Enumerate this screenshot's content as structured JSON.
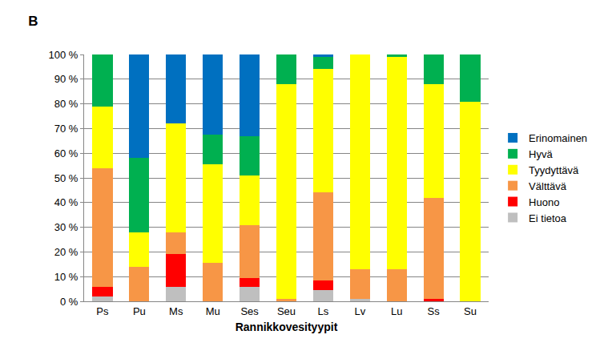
{
  "chart_data": {
    "type": "bar",
    "title": "B",
    "x_label": "Rannikkovesityypit",
    "categories": [
      "Ps",
      "Pu",
      "Ms",
      "Mu",
      "Ses",
      "Seu",
      "Ls",
      "Lv",
      "Lu",
      "Ss",
      "Su"
    ],
    "stacked": true,
    "grid": true,
    "legend": "right",
    "ylim": [
      0,
      100
    ],
    "yticks": [
      {
        "value": 0,
        "label": "0 %"
      },
      {
        "value": 10,
        "label": "10 %"
      },
      {
        "value": 20,
        "label": "20 %"
      },
      {
        "value": 30,
        "label": "30 %"
      },
      {
        "value": 40,
        "label": "40 %"
      },
      {
        "value": 50,
        "label": "50 %"
      },
      {
        "value": 60,
        "label": "60 %"
      },
      {
        "value": 70,
        "label": "70 %"
      },
      {
        "value": 80,
        "label": "80 %"
      },
      {
        "value": 90,
        "label": "90 %"
      },
      {
        "value": 100,
        "label": "100 %"
      }
    ],
    "series": [
      {
        "name": "Ei tietoa",
        "color": "#BFBFBF",
        "values": [
          2,
          0,
          6,
          0,
          6,
          0,
          4.5,
          1,
          0,
          0,
          0
        ]
      },
      {
        "name": "Huono",
        "color": "#FF0000",
        "values": [
          4,
          0,
          13,
          0,
          3.5,
          0,
          4,
          0,
          0,
          1,
          0
        ]
      },
      {
        "name": "Välttävä",
        "color": "#F79646",
        "values": [
          48,
          14,
          9,
          15.5,
          21.5,
          1,
          35.5,
          12,
          13,
          41,
          0
        ]
      },
      {
        "name": "Tyydyttävä",
        "color": "#FFFF00",
        "values": [
          25,
          14,
          44,
          40,
          20,
          87,
          50,
          87,
          86,
          46,
          81
        ]
      },
      {
        "name": "Hyvä",
        "color": "#00B050",
        "values": [
          21,
          30,
          0,
          12,
          16,
          12,
          5,
          0,
          1,
          12,
          19
        ]
      },
      {
        "name": "Erinomainen",
        "color": "#0070C0",
        "values": [
          0,
          42,
          28,
          32.5,
          33,
          0,
          1,
          0,
          0,
          0,
          0
        ]
      }
    ]
  }
}
